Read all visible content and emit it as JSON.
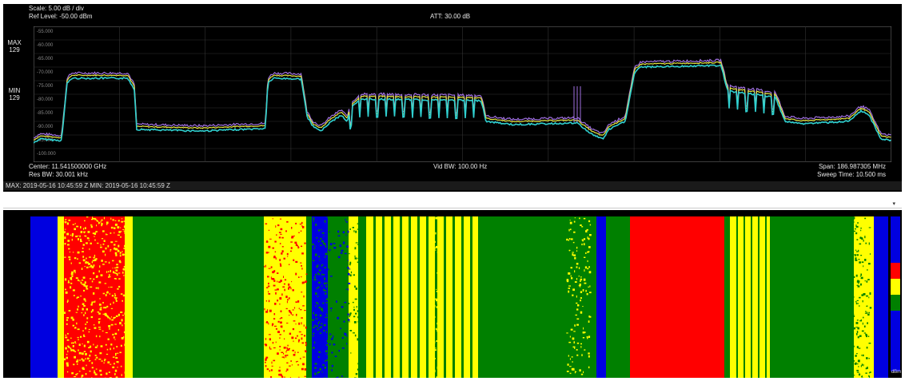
{
  "spectrum": {
    "scale": "Scale: 5.00 dB / div",
    "ref_level": "Ref Level: -50.00 dBm",
    "att": "ATT: 30.00 dB",
    "max_label": "MAX",
    "max_value": "129",
    "min_label": "MIN",
    "min_value": "129",
    "y_ticks": [
      "-55.000",
      "-60.000",
      "-65.000",
      "-70.000",
      "-75.000",
      "-80.000",
      "-85.000",
      "-90.000",
      "-95.000",
      "-100.000"
    ],
    "center": "Center: 11.541500000 GHz",
    "res_bw": "Res BW: 30.001 kHz",
    "vid_bw": "Vid BW: 100.00 Hz",
    "span": "Span: 186.987305 MHz",
    "sweep_time": "Sweep Time: 10.500 ms",
    "timestamps": "MAX: 2019-05-16 10:45:59 Z    MIN: 2019-05-16 10:45:59 Z",
    "trace_colors": {
      "max": "#a070e0",
      "avg": "#e8e840",
      "min": "#30d0d0"
    }
  },
  "separator": {
    "dropdown_icon": "chevron-down-icon",
    "glyph": "▾"
  },
  "waterfall": {
    "colors": {
      "red": "#ff0000",
      "yellow": "#ffff00",
      "green": "#008000",
      "blue": "#0000e0"
    },
    "unit": "dBm"
  }
}
